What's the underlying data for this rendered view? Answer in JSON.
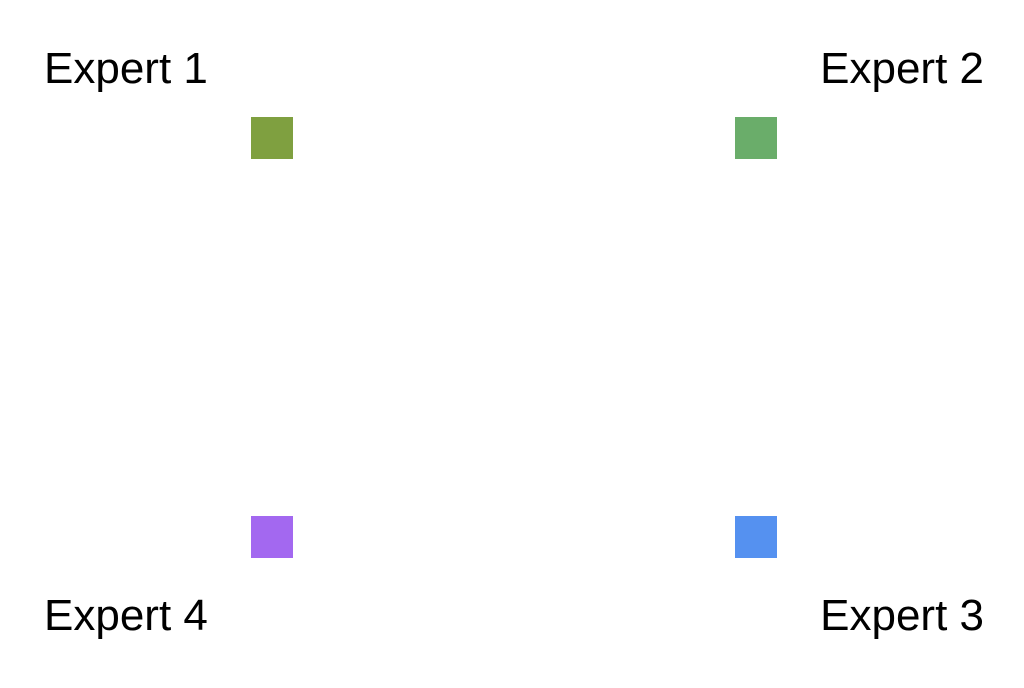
{
  "experts": [
    {
      "label": "Expert 1",
      "color": "#7fa040"
    },
    {
      "label": "Expert 2",
      "color": "#6aad6a"
    },
    {
      "label": "Expert 3",
      "color": "#5591f0"
    },
    {
      "label": "Expert 4",
      "color": "#a368f0"
    }
  ]
}
